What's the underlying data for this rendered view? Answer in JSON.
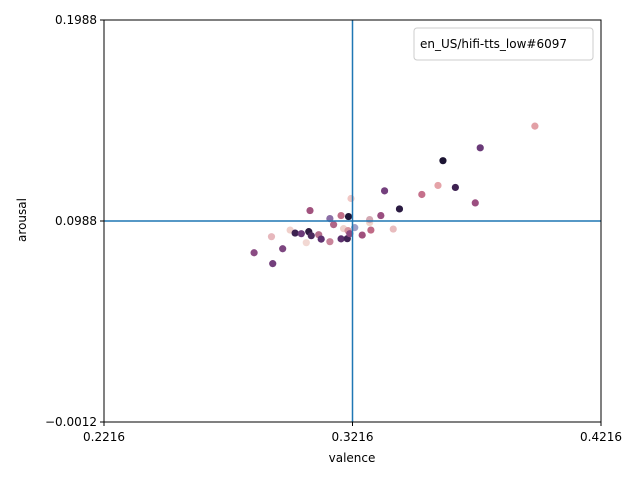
{
  "chart_data": {
    "type": "scatter",
    "title": "",
    "xlabel": "valence",
    "ylabel": "arousal",
    "xlim": [
      0.2216,
      0.4216
    ],
    "ylim": [
      -0.0012,
      0.1988
    ],
    "xticks": [
      0.2216,
      0.3216,
      0.4216
    ],
    "yticks": [
      -0.0012,
      0.0988,
      0.1988
    ],
    "xtick_labels": [
      "0.2216",
      "0.3216",
      "0.4216"
    ],
    "ytick_labels": [
      "−0.0012",
      "0.0988",
      "0.1988"
    ],
    "crosshair": {
      "x": 0.3216,
      "y": 0.0988,
      "color": "#1f77b4"
    },
    "legend": {
      "label": "en_US/hifi-tts_low#6097",
      "placement": "upper right"
    },
    "grid": false,
    "points": [
      {
        "x": 0.282,
        "y": 0.083,
        "color": "#8a4b83"
      },
      {
        "x": 0.289,
        "y": 0.091,
        "color": "#e7b8bd"
      },
      {
        "x": 0.2895,
        "y": 0.0776,
        "color": "#733f7c"
      },
      {
        "x": 0.2935,
        "y": 0.085,
        "color": "#7d4680"
      },
      {
        "x": 0.2965,
        "y": 0.0943,
        "color": "#f0d0cb"
      },
      {
        "x": 0.2985,
        "y": 0.0928,
        "color": "#3d2150"
      },
      {
        "x": 0.301,
        "y": 0.0925,
        "color": "#6b3a79"
      },
      {
        "x": 0.303,
        "y": 0.088,
        "color": "#f2d8d3"
      },
      {
        "x": 0.304,
        "y": 0.0935,
        "color": "#2d1a3f"
      },
      {
        "x": 0.3045,
        "y": 0.104,
        "color": "#a1527e"
      },
      {
        "x": 0.305,
        "y": 0.0915,
        "color": "#4a2a5c"
      },
      {
        "x": 0.308,
        "y": 0.092,
        "color": "#b56f8c"
      },
      {
        "x": 0.309,
        "y": 0.0898,
        "color": "#5d316f"
      },
      {
        "x": 0.3125,
        "y": 0.0885,
        "color": "#c9849a"
      },
      {
        "x": 0.3125,
        "y": 0.1,
        "color": "#8b6ea5"
      },
      {
        "x": 0.314,
        "y": 0.097,
        "color": "#b06687"
      },
      {
        "x": 0.317,
        "y": 0.1015,
        "color": "#c16f88"
      },
      {
        "x": 0.317,
        "y": 0.0899,
        "color": "#5a2f6c"
      },
      {
        "x": 0.318,
        "y": 0.095,
        "color": "#efd2cc"
      },
      {
        "x": 0.3195,
        "y": 0.09,
        "color": "#3f2353"
      },
      {
        "x": 0.3198,
        "y": 0.094,
        "color": "#d7949f"
      },
      {
        "x": 0.32,
        "y": 0.101,
        "color": "#1e1637"
      },
      {
        "x": 0.3205,
        "y": 0.0925,
        "color": "#8e4b80"
      },
      {
        "x": 0.321,
        "y": 0.11,
        "color": "#f1c8c5"
      },
      {
        "x": 0.3225,
        "y": 0.0955,
        "color": "#a0a0c8"
      },
      {
        "x": 0.3255,
        "y": 0.0918,
        "color": "#a0507d"
      },
      {
        "x": 0.3285,
        "y": 0.098,
        "color": "#f0d5cc"
      },
      {
        "x": 0.3285,
        "y": 0.0995,
        "color": "#d3a8b2"
      },
      {
        "x": 0.329,
        "y": 0.0943,
        "color": "#c06a86"
      },
      {
        "x": 0.333,
        "y": 0.1015,
        "color": "#9a4e80"
      },
      {
        "x": 0.3345,
        "y": 0.1138,
        "color": "#74407d"
      },
      {
        "x": 0.338,
        "y": 0.0948,
        "color": "#e8bcbe"
      },
      {
        "x": 0.3405,
        "y": 0.1048,
        "color": "#2b1b42"
      },
      {
        "x": 0.3495,
        "y": 0.112,
        "color": "#c5708b"
      },
      {
        "x": 0.356,
        "y": 0.1165,
        "color": "#e5a3a8"
      },
      {
        "x": 0.358,
        "y": 0.1288,
        "color": "#1c1433"
      },
      {
        "x": 0.363,
        "y": 0.1155,
        "color": "#3e2252"
      },
      {
        "x": 0.371,
        "y": 0.1078,
        "color": "#9b4e80"
      },
      {
        "x": 0.373,
        "y": 0.1352,
        "color": "#6a3a78"
      },
      {
        "x": 0.395,
        "y": 0.146,
        "color": "#e2a0a6"
      }
    ]
  }
}
